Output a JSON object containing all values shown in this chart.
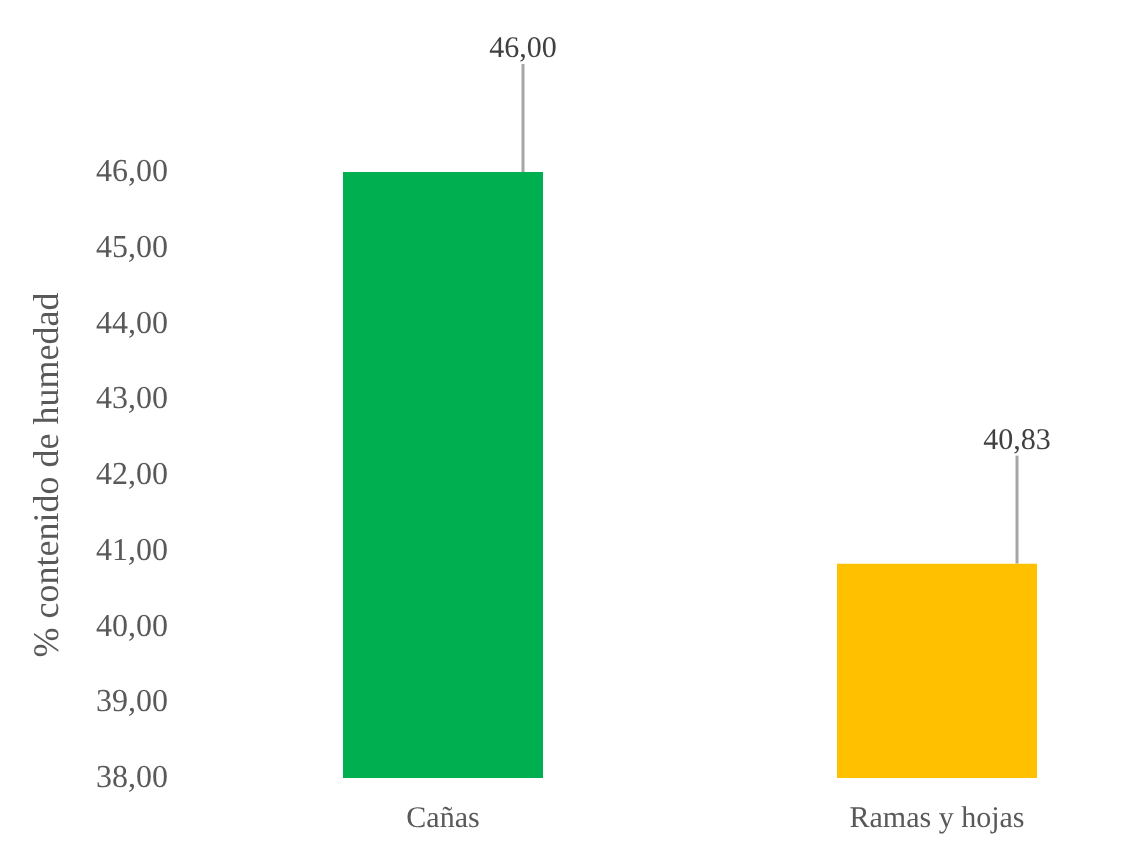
{
  "chart_data": {
    "type": "bar",
    "ylabel": "% contenido de humedad",
    "categories": [
      "Cañas",
      "Ramas y hojas"
    ],
    "values": [
      46.0,
      40.83
    ],
    "colors": [
      "#00b050",
      "#ffc000"
    ],
    "value_labels": [
      "46,00",
      "40,83"
    ],
    "ylim": [
      38,
      46
    ],
    "yticks": [
      {
        "value": 38,
        "label": "38,00"
      },
      {
        "value": 39,
        "label": "39,00"
      },
      {
        "value": 40,
        "label": "40,00"
      },
      {
        "value": 41,
        "label": "41,00"
      },
      {
        "value": 42,
        "label": "42,00"
      },
      {
        "value": 43,
        "label": "43,00"
      },
      {
        "value": 44,
        "label": "44,00"
      },
      {
        "value": 45,
        "label": "45,00"
      },
      {
        "value": 46,
        "label": "46,00"
      }
    ],
    "grid": false
  }
}
